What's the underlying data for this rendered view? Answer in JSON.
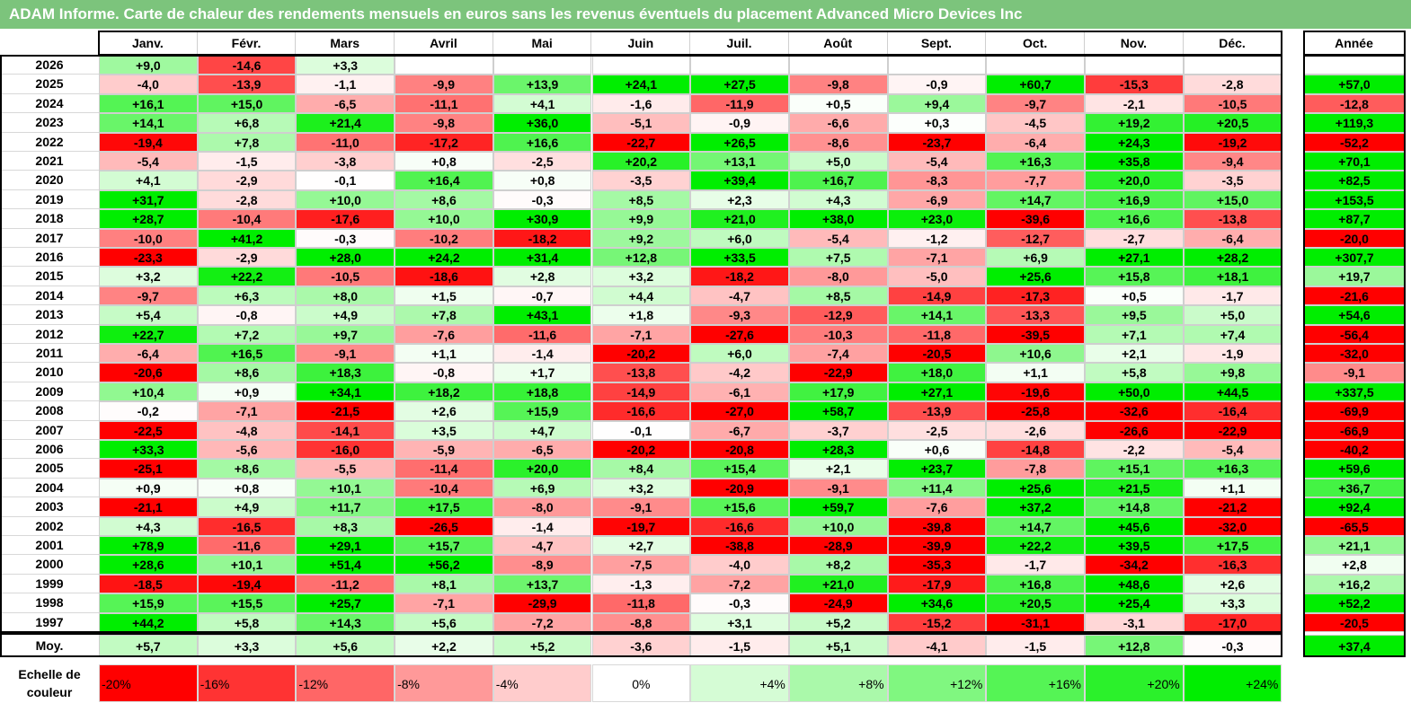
{
  "title": "ADAM Informe. Carte de chaleur des rendements mensuels en euros sans les revenus éventuels du placement Advanced Micro Devices Inc",
  "chart_data": {
    "type": "heatmap",
    "title": "ADAM Informe. Carte de chaleur des rendements mensuels en euros sans les revenus éventuels du placement Advanced Micro Devices Inc",
    "columns": [
      "Janv.",
      "Févr.",
      "Mars",
      "Avril",
      "Mai",
      "Juin",
      "Juil.",
      "Août",
      "Sept.",
      "Oct.",
      "Nov.",
      "Déc."
    ],
    "year_column_label": "Année",
    "rows": [
      {
        "label": "2026",
        "values": [
          "+9,0",
          "-14,6",
          "+3,3",
          "",
          "",
          "",
          "",
          "",
          "",
          "",
          "",
          ""
        ],
        "year": ""
      },
      {
        "label": "2025",
        "values": [
          "-4,0",
          "-13,9",
          "-1,1",
          "-9,9",
          "+13,9",
          "+24,1",
          "+27,5",
          "-9,8",
          "-0,9",
          "+60,7",
          "-15,3",
          "-2,8"
        ],
        "year": "+57,0"
      },
      {
        "label": "2024",
        "values": [
          "+16,1",
          "+15,0",
          "-6,5",
          "-11,1",
          "+4,1",
          "-1,6",
          "-11,9",
          "+0,5",
          "+9,4",
          "-9,7",
          "-2,1",
          "-10,5"
        ],
        "year": "-12,8"
      },
      {
        "label": "2023",
        "values": [
          "+14,1",
          "+6,8",
          "+21,4",
          "-9,8",
          "+36,0",
          "-5,1",
          "-0,9",
          "-6,6",
          "+0,3",
          "-4,5",
          "+19,2",
          "+20,5"
        ],
        "year": "+119,3"
      },
      {
        "label": "2022",
        "values": [
          "-19,4",
          "+7,8",
          "-11,0",
          "-17,2",
          "+16,6",
          "-22,7",
          "+26,5",
          "-8,6",
          "-23,7",
          "-6,4",
          "+24,3",
          "-19,2"
        ],
        "year": "-52,2"
      },
      {
        "label": "2021",
        "values": [
          "-5,4",
          "-1,5",
          "-3,8",
          "+0,8",
          "-2,5",
          "+20,2",
          "+13,1",
          "+5,0",
          "-5,4",
          "+16,3",
          "+35,8",
          "-9,4"
        ],
        "year": "+70,1"
      },
      {
        "label": "2020",
        "values": [
          "+4,1",
          "-2,9",
          "-0,1",
          "+16,4",
          "+0,8",
          "-3,5",
          "+39,4",
          "+16,7",
          "-8,3",
          "-7,7",
          "+20,0",
          "-3,5"
        ],
        "year": "+82,5"
      },
      {
        "label": "2019",
        "values": [
          "+31,7",
          "-2,8",
          "+10,0",
          "+8,6",
          "-0,3",
          "+8,5",
          "+2,3",
          "+4,3",
          "-6,9",
          "+14,7",
          "+16,9",
          "+15,0"
        ],
        "year": "+153,5"
      },
      {
        "label": "2018",
        "values": [
          "+28,7",
          "-10,4",
          "-17,6",
          "+10,0",
          "+30,9",
          "+9,9",
          "+21,0",
          "+38,0",
          "+23,0",
          "-39,6",
          "+16,6",
          "-13,8"
        ],
        "year": "+87,7"
      },
      {
        "label": "2017",
        "values": [
          "-10,0",
          "+41,2",
          "-0,3",
          "-10,2",
          "-18,2",
          "+9,2",
          "+6,0",
          "-5,4",
          "-1,2",
          "-12,7",
          "-2,7",
          "-6,4"
        ],
        "year": "-20,0"
      },
      {
        "label": "2016",
        "values": [
          "-23,3",
          "-2,9",
          "+28,0",
          "+24,2",
          "+31,4",
          "+12,8",
          "+33,5",
          "+7,5",
          "-7,1",
          "+6,9",
          "+27,1",
          "+28,2"
        ],
        "year": "+307,7"
      },
      {
        "label": "2015",
        "values": [
          "+3,2",
          "+22,2",
          "-10,5",
          "-18,6",
          "+2,8",
          "+3,2",
          "-18,2",
          "-8,0",
          "-5,0",
          "+25,6",
          "+15,8",
          "+18,1"
        ],
        "year": "+19,7"
      },
      {
        "label": "2014",
        "values": [
          "-9,7",
          "+6,3",
          "+8,0",
          "+1,5",
          "-0,7",
          "+4,4",
          "-4,7",
          "+8,5",
          "-14,9",
          "-17,3",
          "+0,5",
          "-1,7"
        ],
        "year": "-21,6"
      },
      {
        "label": "2013",
        "values": [
          "+5,4",
          "-0,8",
          "+4,9",
          "+7,8",
          "+43,1",
          "+1,8",
          "-9,3",
          "-12,9",
          "+14,1",
          "-13,3",
          "+9,5",
          "+5,0"
        ],
        "year": "+54,6"
      },
      {
        "label": "2012",
        "values": [
          "+22,7",
          "+7,2",
          "+9,7",
          "-7,6",
          "-11,6",
          "-7,1",
          "-27,6",
          "-10,3",
          "-11,8",
          "-39,5",
          "+7,1",
          "+7,4"
        ],
        "year": "-56,4"
      },
      {
        "label": "2011",
        "values": [
          "-6,4",
          "+16,5",
          "-9,1",
          "+1,1",
          "-1,4",
          "-20,2",
          "+6,0",
          "-7,4",
          "-20,5",
          "+10,6",
          "+2,1",
          "-1,9"
        ],
        "year": "-32,0"
      },
      {
        "label": "2010",
        "values": [
          "-20,6",
          "+8,6",
          "+18,3",
          "-0,8",
          "+1,7",
          "-13,8",
          "-4,2",
          "-22,9",
          "+18,0",
          "+1,1",
          "+5,8",
          "+9,8"
        ],
        "year": "-9,1"
      },
      {
        "label": "2009",
        "values": [
          "+10,4",
          "+0,9",
          "+34,1",
          "+18,2",
          "+18,8",
          "-14,9",
          "-6,1",
          "+17,9",
          "+27,1",
          "-19,6",
          "+50,0",
          "+44,5"
        ],
        "year": "+337,5"
      },
      {
        "label": "2008",
        "values": [
          "-0,2",
          "-7,1",
          "-21,5",
          "+2,6",
          "+15,9",
          "-16,6",
          "-27,0",
          "+58,7",
          "-13,9",
          "-25,8",
          "-32,6",
          "-16,4"
        ],
        "year": "-69,9"
      },
      {
        "label": "2007",
        "values": [
          "-22,5",
          "-4,8",
          "-14,1",
          "+3,5",
          "+4,7",
          "-0,1",
          "-6,7",
          "-3,7",
          "-2,5",
          "-2,6",
          "-26,6",
          "-22,9"
        ],
        "year": "-66,9"
      },
      {
        "label": "2006",
        "values": [
          "+33,3",
          "-5,6",
          "-16,0",
          "-5,9",
          "-6,5",
          "-20,2",
          "-20,8",
          "+28,3",
          "+0,6",
          "-14,8",
          "-2,2",
          "-5,4"
        ],
        "year": "-40,2"
      },
      {
        "label": "2005",
        "values": [
          "-25,1",
          "+8,6",
          "-5,5",
          "-11,4",
          "+20,0",
          "+8,4",
          "+15,4",
          "+2,1",
          "+23,7",
          "-7,8",
          "+15,1",
          "+16,3"
        ],
        "year": "+59,6"
      },
      {
        "label": "2004",
        "values": [
          "+0,9",
          "+0,8",
          "+10,1",
          "-10,4",
          "+6,9",
          "+3,2",
          "-20,9",
          "-9,1",
          "+11,4",
          "+25,6",
          "+21,5",
          "+1,1"
        ],
        "year": "+36,7"
      },
      {
        "label": "2003",
        "values": [
          "-21,1",
          "+4,9",
          "+11,7",
          "+17,5",
          "-8,0",
          "-9,1",
          "+15,6",
          "+59,7",
          "-7,6",
          "+37,2",
          "+14,8",
          "-21,2"
        ],
        "year": "+92,4"
      },
      {
        "label": "2002",
        "values": [
          "+4,3",
          "-16,5",
          "+8,3",
          "-26,5",
          "-1,4",
          "-19,7",
          "-16,6",
          "+10,0",
          "-39,8",
          "+14,7",
          "+45,6",
          "-32,0"
        ],
        "year": "-65,5"
      },
      {
        "label": "2001",
        "values": [
          "+78,9",
          "-11,6",
          "+29,1",
          "+15,7",
          "-4,7",
          "+2,7",
          "-38,8",
          "-28,9",
          "-39,9",
          "+22,2",
          "+39,5",
          "+17,5"
        ],
        "year": "+21,1"
      },
      {
        "label": "2000",
        "values": [
          "+28,6",
          "+10,1",
          "+51,4",
          "+56,2",
          "-8,9",
          "-7,5",
          "-4,0",
          "+8,2",
          "-35,3",
          "-1,7",
          "-34,2",
          "-16,3"
        ],
        "year": "+2,8"
      },
      {
        "label": "1999",
        "values": [
          "-18,5",
          "-19,4",
          "-11,2",
          "+8,1",
          "+13,7",
          "-1,3",
          "-7,2",
          "+21,0",
          "-17,9",
          "+16,8",
          "+48,6",
          "+2,6"
        ],
        "year": "+16,2"
      },
      {
        "label": "1998",
        "values": [
          "+15,9",
          "+15,5",
          "+25,7",
          "-7,1",
          "-29,9",
          "-11,8",
          "-0,3",
          "-24,9",
          "+34,6",
          "+20,5",
          "+25,4",
          "+3,3"
        ],
        "year": "+52,2"
      },
      {
        "label": "1997",
        "values": [
          "+44,2",
          "+5,8",
          "+14,3",
          "+5,6",
          "-7,2",
          "-8,8",
          "+3,1",
          "+5,2",
          "-15,2",
          "-31,1",
          "-3,1",
          "-17,0"
        ],
        "year": "-20,5"
      }
    ],
    "average": {
      "label": "Moy.",
      "values": [
        "+5,7",
        "+3,3",
        "+5,6",
        "+2,2",
        "+5,2",
        "-3,6",
        "-1,5",
        "+5,1",
        "-4,1",
        "-1,5",
        "+12,8",
        "-0,3"
      ],
      "year": "+37,4"
    },
    "color_scale": {
      "label_line1": "Echelle de",
      "label_line2": "couleur",
      "stops": [
        "-20%",
        "-16%",
        "-12%",
        "-8%",
        "-4%",
        "0%",
        "+4%",
        "+8%",
        "+12%",
        "+16%",
        "+20%",
        "+24%"
      ],
      "stop_values": [
        -20,
        -16,
        -12,
        -8,
        -4,
        0,
        4,
        8,
        12,
        16,
        20,
        24
      ],
      "negative_color": "#ff0000",
      "positive_color": "#00ee00",
      "neutral_color": "#ffffff"
    }
  }
}
